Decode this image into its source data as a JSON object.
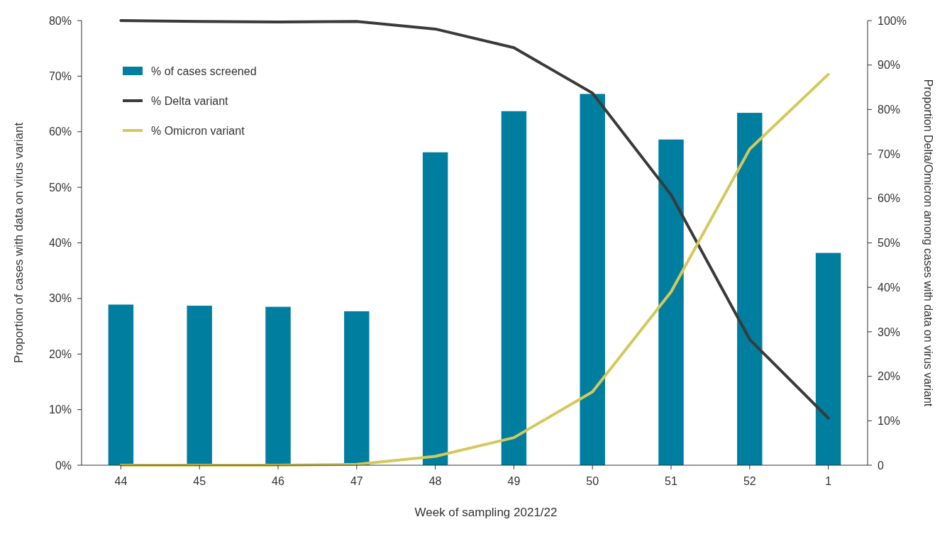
{
  "chart_data": {
    "type": "bar",
    "xlabel": "Week of sampling 2021/22",
    "ylabel": "Proportion of cases with data on virus variant",
    "y2label": "Proportion Delta/Omicron among cases with data on virus variant",
    "categories": [
      "44",
      "45",
      "46",
      "47",
      "48",
      "49",
      "50",
      "51",
      "52",
      "1"
    ],
    "series": [
      {
        "name": "% of cases screened",
        "color": "#007ea0",
        "values": [
          28.9,
          28.7,
          28.5,
          27.7,
          56.3,
          63.7,
          66.8,
          58.6,
          63.4,
          38.2
        ]
      },
      {
        "name": "% Delta variant",
        "type": "line",
        "axis": "y2",
        "color": "#3a3a3a",
        "values": [
          100,
          99.8,
          99.7,
          99.8,
          98.1,
          93.9,
          83.7,
          60.8,
          28.3,
          10.6
        ]
      },
      {
        "name": "% Omicron variant",
        "type": "line",
        "axis": "y2",
        "color": "#d4c85c",
        "values": [
          0,
          0,
          0,
          0.2,
          2,
          6.2,
          16.5,
          39,
          71.1,
          87.9
        ]
      }
    ],
    "ylim": [
      0,
      80
    ],
    "yticks": [
      {
        "value": 0,
        "label": "0%"
      },
      {
        "value": 10,
        "label": "10%"
      },
      {
        "value": 20,
        "label": "20%"
      },
      {
        "value": 30,
        "label": "30%"
      },
      {
        "value": 40,
        "label": "40%"
      },
      {
        "value": 50,
        "label": "50%"
      },
      {
        "value": 60,
        "label": "60%"
      },
      {
        "value": 70,
        "label": "70%"
      },
      {
        "value": 80,
        "label": "80%"
      }
    ],
    "y2lim": [
      0,
      100
    ],
    "y2ticks": [
      0,
      {
        "value": 10,
        "label": "10%"
      },
      {
        "value": 20,
        "label": "20%"
      },
      {
        "value": 30,
        "label": "30%"
      },
      {
        "value": 40,
        "label": "40%"
      },
      {
        "value": 50,
        "label": "50%"
      },
      {
        "value": 60,
        "label": "60%"
      },
      {
        "value": 70,
        "label": "70%"
      },
      {
        "value": 80,
        "label": "80%"
      },
      {
        "value": 90,
        "label": "90%"
      },
      {
        "value": 100,
        "label": "100%"
      }
    ],
    "legend": "top left",
    "grid": false
  }
}
